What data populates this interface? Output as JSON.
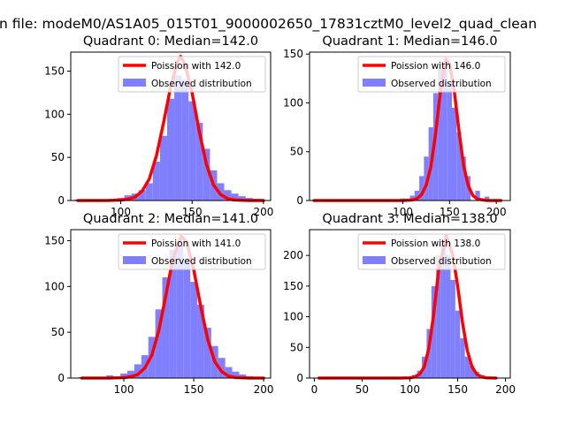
{
  "figure": {
    "suptitle": "n file: modeM0/AS1A05_015T01_9000002650_17831cztM0_level2_quad_clean"
  },
  "colors": {
    "hist": "#8080ff",
    "poisson": "#ff0000",
    "axis": "#000000",
    "background": "#ffffff"
  },
  "chart_data": [
    {
      "type": "bar",
      "quadrant": 0,
      "title": "Quadrant 0: Median=142.0",
      "median": 142.0,
      "xlim": [
        65,
        205
      ],
      "ylim": [
        0,
        172
      ],
      "xticks": [
        100,
        150,
        200
      ],
      "yticks": [
        0,
        50,
        100,
        150
      ],
      "legend": {
        "position": "top-right",
        "line_label": "Poission with 142.0",
        "hist_label": "Observed distribution"
      },
      "hist_x": [
        70,
        100,
        105,
        110,
        115,
        120,
        125,
        130,
        135,
        140,
        145,
        150,
        155,
        160,
        165,
        170,
        175,
        180,
        185,
        190,
        195
      ],
      "hist_y": [
        1,
        3,
        6,
        8,
        12,
        20,
        45,
        75,
        118,
        145,
        140,
        115,
        90,
        60,
        35,
        20,
        12,
        8,
        5,
        3,
        2
      ],
      "poisson_x": [
        70,
        80,
        90,
        100,
        105,
        110,
        115,
        120,
        125,
        130,
        135,
        140,
        142,
        145,
        150,
        155,
        160,
        165,
        170,
        175,
        180,
        190,
        200
      ],
      "poisson_y": [
        0,
        0,
        0,
        0.5,
        1.5,
        4,
        11,
        25,
        52,
        90,
        132,
        162,
        167,
        158,
        125,
        80,
        42,
        18,
        7,
        2,
        0.6,
        0,
        0
      ]
    },
    {
      "type": "bar",
      "quadrant": 1,
      "title": "Quadrant 1: Median=146.0",
      "median": 146.0,
      "xlim": [
        0,
        215
      ],
      "ylim": [
        0,
        152
      ],
      "xticks": [
        100,
        150,
        200
      ],
      "yticks": [
        0,
        50,
        100,
        150
      ],
      "legend": {
        "position": "top-right",
        "line_label": "Poission with 146.0",
        "hist_label": "Observed distribution"
      },
      "hist_x": [
        5,
        20,
        40,
        60,
        80,
        100,
        110,
        115,
        120,
        125,
        130,
        135,
        140,
        145,
        150,
        155,
        160,
        165,
        170,
        180,
        190,
        200
      ],
      "hist_y": [
        1,
        1,
        1,
        1,
        1,
        2,
        5,
        10,
        25,
        45,
        75,
        110,
        135,
        140,
        120,
        95,
        70,
        45,
        25,
        10,
        4,
        1
      ],
      "poisson_x": [
        5,
        50,
        100,
        110,
        115,
        120,
        125,
        130,
        135,
        140,
        146,
        150,
        155,
        160,
        165,
        170,
        175,
        180,
        190,
        205
      ],
      "poisson_y": [
        0,
        0,
        0,
        0.5,
        2,
        6,
        16,
        35,
        68,
        110,
        145,
        140,
        112,
        72,
        36,
        15,
        5,
        1.5,
        0,
        0
      ]
    },
    {
      "type": "bar",
      "quadrant": 2,
      "title": "Quadrant 2: Median=141.0",
      "median": 141.0,
      "xlim": [
        62,
        205
      ],
      "ylim": [
        0,
        162
      ],
      "xticks": [
        100,
        150,
        200
      ],
      "yticks": [
        0,
        50,
        100,
        150
      ],
      "legend": {
        "position": "top-right",
        "line_label": "Poission with 141.0",
        "hist_label": "Observed distribution"
      },
      "hist_x": [
        70,
        90,
        100,
        105,
        110,
        115,
        120,
        125,
        130,
        135,
        140,
        145,
        150,
        155,
        160,
        165,
        170,
        175,
        180,
        185,
        190,
        195
      ],
      "hist_y": [
        1,
        3,
        5,
        8,
        15,
        25,
        45,
        75,
        110,
        140,
        145,
        130,
        105,
        80,
        55,
        35,
        22,
        12,
        7,
        4,
        2,
        1
      ],
      "poisson_x": [
        70,
        80,
        90,
        100,
        105,
        110,
        115,
        120,
        125,
        130,
        135,
        141,
        145,
        150,
        155,
        160,
        165,
        170,
        175,
        180,
        190,
        200
      ],
      "poisson_y": [
        0,
        0,
        0,
        0.5,
        1.5,
        4,
        11,
        25,
        52,
        90,
        130,
        155,
        148,
        118,
        78,
        42,
        18,
        7,
        2,
        0.6,
        0,
        0
      ]
    },
    {
      "type": "bar",
      "quadrant": 3,
      "title": "Quadrant 3: Median=138.0",
      "median": 138.0,
      "xlim": [
        -5,
        205
      ],
      "ylim": [
        0,
        242
      ],
      "xticks": [
        0,
        50,
        100,
        150,
        200
      ],
      "yticks": [
        0,
        50,
        100,
        150,
        200
      ],
      "legend": {
        "position": "top-right",
        "line_label": "Poission with 138.0",
        "hist_label": "Observed distribution"
      },
      "hist_x": [
        5,
        30,
        60,
        90,
        100,
        105,
        110,
        115,
        120,
        125,
        130,
        135,
        140,
        145,
        150,
        155,
        160,
        165,
        170,
        175,
        180,
        190
      ],
      "hist_y": [
        1,
        1,
        1,
        1,
        2,
        5,
        12,
        35,
        80,
        150,
        200,
        225,
        200,
        160,
        110,
        65,
        35,
        20,
        10,
        5,
        2,
        1
      ],
      "poisson_x": [
        5,
        50,
        90,
        100,
        105,
        110,
        115,
        120,
        125,
        130,
        138,
        145,
        150,
        155,
        160,
        165,
        170,
        175,
        180,
        190
      ],
      "poisson_y": [
        0,
        0,
        0,
        0.5,
        2,
        6,
        18,
        50,
        105,
        175,
        232,
        200,
        150,
        90,
        45,
        18,
        6,
        2,
        0.5,
        0
      ]
    }
  ]
}
